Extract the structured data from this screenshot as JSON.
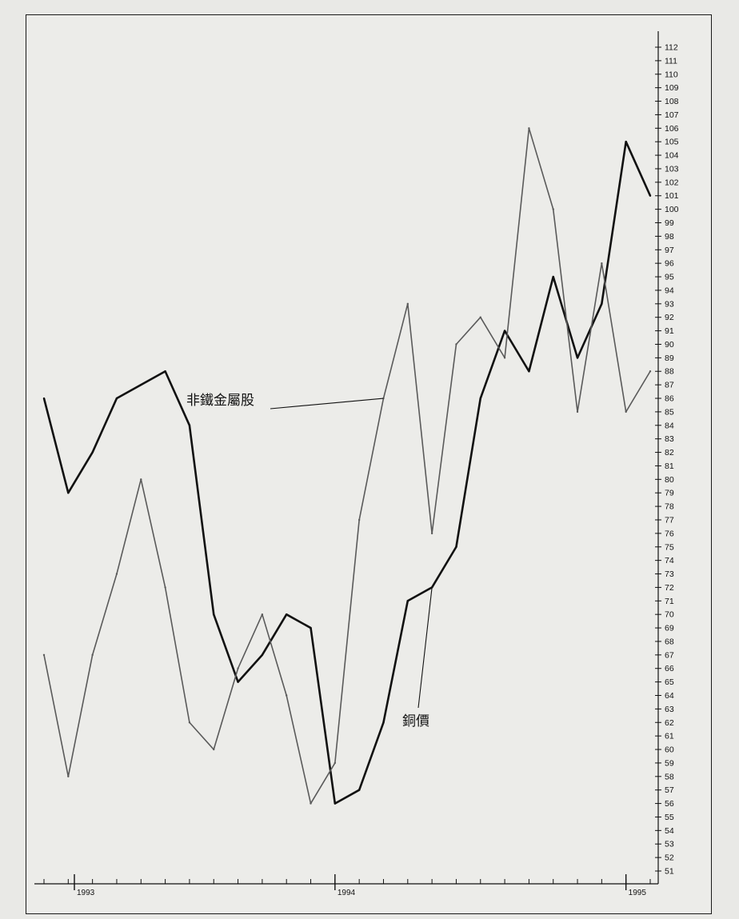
{
  "chart_data": {
    "type": "line",
    "title": "",
    "xlabel": "",
    "ylabel": "",
    "x_tick_labels": [
      "1993",
      "1994",
      "1995"
    ],
    "ylim": [
      51,
      112
    ],
    "y_axis_side": "right",
    "y_tick_step": 1,
    "grid": false,
    "x": [
      "1993-01",
      "1993-02",
      "1993-03",
      "1993-04",
      "1993-05",
      "1993-06",
      "1993-07",
      "1993-08",
      "1993-09",
      "1993-10",
      "1993-11",
      "1993-12",
      "1994-01",
      "1994-02",
      "1994-03",
      "1994-04",
      "1994-05",
      "1994-06",
      "1994-07",
      "1994-08",
      "1994-09",
      "1994-10",
      "1994-11",
      "1994-12",
      "1995-01",
      "1995-02"
    ],
    "series": [
      {
        "name": "銅價",
        "color": "#111111",
        "stroke": 2.6,
        "values": [
          86,
          79,
          82,
          86,
          87,
          88,
          84,
          70,
          65,
          67,
          70,
          69,
          56,
          57,
          62,
          71,
          72,
          75,
          86,
          91,
          88,
          95,
          89,
          93,
          105,
          101
        ]
      },
      {
        "name": "非鐵金屬股",
        "color": "#5a5a5a",
        "stroke": 1.6,
        "values": [
          67,
          58,
          67,
          73,
          80,
          72,
          62,
          60,
          66,
          70,
          64,
          56,
          59,
          77,
          86,
          93,
          76,
          90,
          92,
          89,
          106,
          100,
          85,
          96,
          85,
          88
        ]
      }
    ],
    "annotations": [
      {
        "text": "非鐵金屬股",
        "target_series": "非鐵金屬股"
      },
      {
        "text": "銅價",
        "target_series": "銅價"
      }
    ]
  }
}
